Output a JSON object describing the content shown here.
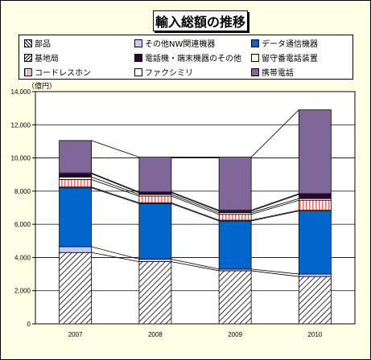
{
  "chart_data": {
    "type": "bar",
    "title": "輸入総額の推移",
    "unit_label": "（億円）",
    "categories": [
      "2007",
      "2008",
      "2009",
      "2010"
    ],
    "ylim": [
      0,
      14000
    ],
    "yticks": [
      "0",
      "2,000",
      "4,000",
      "6,000",
      "8,000",
      "10,000",
      "12,000",
      "14,000"
    ],
    "grid": true,
    "legend_position": "top",
    "series": [
      {
        "name": "部品",
        "values": [
          4300,
          3750,
          3200,
          2850
        ],
        "color": "#ffffff",
        "pattern": "diagonal-hatch"
      },
      {
        "name": "その他NW関連機器",
        "values": [
          350,
          150,
          100,
          150
        ],
        "color": "#C8C8FF"
      },
      {
        "name": "データ通信機器",
        "values": [
          3550,
          3350,
          2900,
          3800
        ],
        "color": "#0066CC"
      },
      {
        "name": "基地局",
        "values": [
          50,
          50,
          50,
          50
        ],
        "color": "#ffffff"
      },
      {
        "name": "コードレスホン",
        "values": [
          450,
          400,
          350,
          600
        ],
        "color": "#FF9999",
        "pattern": "vertical-stripes"
      },
      {
        "name": "ファクシミリ",
        "values": [
          150,
          100,
          100,
          100
        ],
        "color": "#ffffff"
      },
      {
        "name": "電話機・端末機器のその他",
        "values": [
          200,
          100,
          100,
          250
        ],
        "color": "#330033"
      },
      {
        "name": "留守番電話装置",
        "values": [
          50,
          50,
          50,
          50
        ],
        "color": "#FFFFCC"
      },
      {
        "name": "携帯電話",
        "values": [
          1950,
          2100,
          3200,
          5050
        ],
        "color": "#806699"
      }
    ]
  },
  "legend": [
    {
      "name": "部品",
      "color": "#ffffff",
      "row": 0,
      "col": 0
    },
    {
      "name": "その他NW関連機器",
      "color": "#C8C8FF",
      "row": 0,
      "col": 1
    },
    {
      "name": "データ通信機器",
      "color": "#0066CC",
      "row": 0,
      "col": 2
    },
    {
      "name": "基地局",
      "color": "#ffffff",
      "row": 1,
      "col": 0
    },
    {
      "name": "電話機・端末機器のその他",
      "color": "#330033",
      "row": 1,
      "col": 1
    },
    {
      "name": "留守番電話装置",
      "color": "#FFFFCC",
      "row": 1,
      "col": 2
    },
    {
      "name": "コードレスホン",
      "color": "#FF9999",
      "row": 2,
      "col": 0
    },
    {
      "name": "ファクシミリ",
      "color": "#ffffff",
      "row": 2,
      "col": 1
    },
    {
      "name": "携帯電話",
      "color": "#806699",
      "row": 2,
      "col": 2
    }
  ]
}
